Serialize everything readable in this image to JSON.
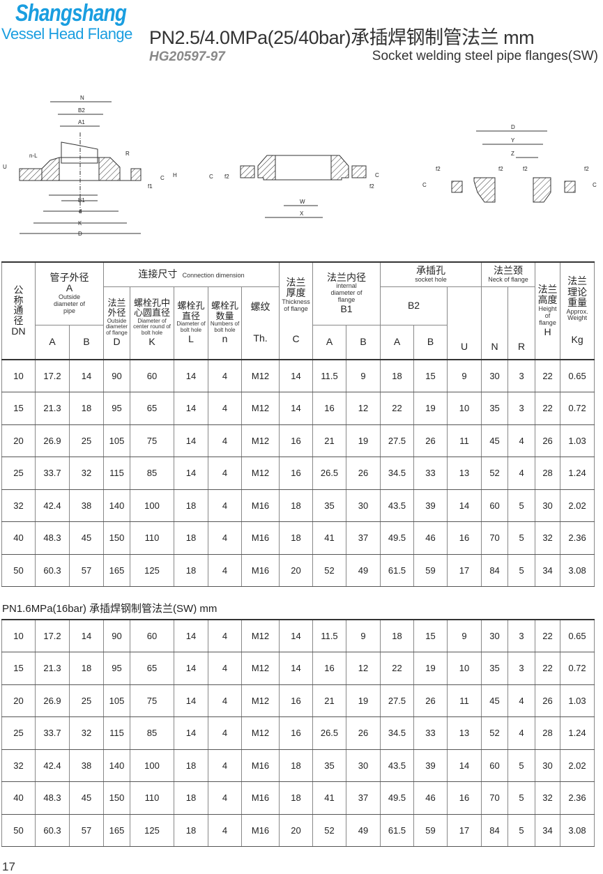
{
  "brand": {
    "name": "Shangshang",
    "tagline": "Vessel Head Flange"
  },
  "title": "PN2.5/4.0MPa(25/40bar)承插焊钢制管法兰  mm",
  "standard": "HG20597-97",
  "subtitle": "Socket welding steel pipe flanges(SW)",
  "diagrams": {
    "d1": [
      "N",
      "B2",
      "A1",
      "R",
      "n-L",
      "U",
      "C",
      "H",
      "f1",
      "B1",
      "d",
      "K",
      "D"
    ],
    "d2": [
      "C",
      "f2",
      "f2",
      "C",
      "W",
      "X"
    ],
    "d3": [
      "D",
      "Y",
      "Z",
      "f2",
      "f2",
      "f2",
      "f2",
      "C",
      "C"
    ]
  },
  "header": {
    "dn": {
      "zh": "公\n称\n通\n径",
      "en": "DN"
    },
    "pipe": {
      "zh": "管子外径",
      "sym": "A",
      "en": "Outside diameter of pipe",
      "a": "A",
      "b": "B"
    },
    "conn": {
      "zh": "连接尺寸",
      "en": "Connection dimension"
    },
    "D": {
      "zh": "法兰外径",
      "en": "Outside diameter of flange",
      "sym": "D"
    },
    "K": {
      "zh": "螺栓孔中心圆直径",
      "en": "Diameter of center round of bolt hole",
      "sym": "K"
    },
    "L": {
      "zh": "螺栓孔直径",
      "en": "Diameter of bolt hole",
      "sym": "L"
    },
    "n": {
      "zh": "螺栓孔数量",
      "en": "Numbers of bolt hole",
      "sym": "n"
    },
    "Th": {
      "zh": "螺纹",
      "sym": "Th."
    },
    "C": {
      "zh": "法兰厚度",
      "en": "Thickness of flange",
      "sym": "C"
    },
    "B1": {
      "zh": "法兰内径",
      "en": "internal diameter of flange",
      "sym": "B1",
      "a": "A",
      "b": "B"
    },
    "socket": {
      "zh": "承插孔",
      "en": "socket hole",
      "b2": "B2",
      "a": "A",
      "b": "B",
      "u": "U"
    },
    "neck": {
      "zh": "法兰颈",
      "en": "Neck of flange",
      "n": "N",
      "r": "R"
    },
    "H": {
      "zh": "法兰高度",
      "en": "Height of flange",
      "sym": "H"
    },
    "Kg": {
      "zh": "法兰理论重量",
      "en": "Approx. Weight",
      "sym": "Kg"
    }
  },
  "table1": [
    [
      "10",
      "17.2",
      "14",
      "90",
      "60",
      "14",
      "4",
      "M12",
      "14",
      "11.5",
      "9",
      "18",
      "15",
      "9",
      "30",
      "3",
      "22",
      "0.65"
    ],
    [
      "15",
      "21.3",
      "18",
      "95",
      "65",
      "14",
      "4",
      "M12",
      "14",
      "16",
      "12",
      "22",
      "19",
      "10",
      "35",
      "3",
      "22",
      "0.72"
    ],
    [
      "20",
      "26.9",
      "25",
      "105",
      "75",
      "14",
      "4",
      "M12",
      "16",
      "21",
      "19",
      "27.5",
      "26",
      "11",
      "45",
      "4",
      "26",
      "1.03"
    ],
    [
      "25",
      "33.7",
      "32",
      "115",
      "85",
      "14",
      "4",
      "M12",
      "16",
      "26.5",
      "26",
      "34.5",
      "33",
      "13",
      "52",
      "4",
      "28",
      "1.24"
    ],
    [
      "32",
      "42.4",
      "38",
      "140",
      "100",
      "18",
      "4",
      "M16",
      "18",
      "35",
      "30",
      "43.5",
      "39",
      "14",
      "60",
      "5",
      "30",
      "2.02"
    ],
    [
      "40",
      "48.3",
      "45",
      "150",
      "110",
      "18",
      "4",
      "M16",
      "18",
      "41",
      "37",
      "49.5",
      "46",
      "16",
      "70",
      "5",
      "32",
      "2.36"
    ],
    [
      "50",
      "60.3",
      "57",
      "165",
      "125",
      "18",
      "4",
      "M16",
      "20",
      "52",
      "49",
      "61.5",
      "59",
      "17",
      "84",
      "5",
      "34",
      "3.08"
    ]
  ],
  "table2_title": "PN1.6MPa(16bar) 承插焊钢制管法兰(SW)  mm",
  "table2": [
    [
      "10",
      "17.2",
      "14",
      "90",
      "60",
      "14",
      "4",
      "M12",
      "14",
      "11.5",
      "9",
      "18",
      "15",
      "9",
      "30",
      "3",
      "22",
      "0.65"
    ],
    [
      "15",
      "21.3",
      "18",
      "95",
      "65",
      "14",
      "4",
      "M12",
      "14",
      "16",
      "12",
      "22",
      "19",
      "10",
      "35",
      "3",
      "22",
      "0.72"
    ],
    [
      "20",
      "26.9",
      "25",
      "105",
      "75",
      "14",
      "4",
      "M12",
      "16",
      "21",
      "19",
      "27.5",
      "26",
      "11",
      "45",
      "4",
      "26",
      "1.03"
    ],
    [
      "25",
      "33.7",
      "32",
      "115",
      "85",
      "14",
      "4",
      "M12",
      "16",
      "26.5",
      "26",
      "34.5",
      "33",
      "13",
      "52",
      "4",
      "28",
      "1.24"
    ],
    [
      "32",
      "42.4",
      "38",
      "140",
      "100",
      "18",
      "4",
      "M16",
      "18",
      "35",
      "30",
      "43.5",
      "39",
      "14",
      "60",
      "5",
      "30",
      "2.02"
    ],
    [
      "40",
      "48.3",
      "45",
      "150",
      "110",
      "18",
      "4",
      "M16",
      "18",
      "41",
      "37",
      "49.5",
      "46",
      "16",
      "70",
      "5",
      "32",
      "2.36"
    ],
    [
      "50",
      "60.3",
      "57",
      "165",
      "125",
      "18",
      "4",
      "M16",
      "20",
      "52",
      "49",
      "61.5",
      "59",
      "17",
      "84",
      "5",
      "34",
      "3.08"
    ]
  ],
  "page_number": "17",
  "colors": {
    "brand": "#1a9ee0"
  }
}
